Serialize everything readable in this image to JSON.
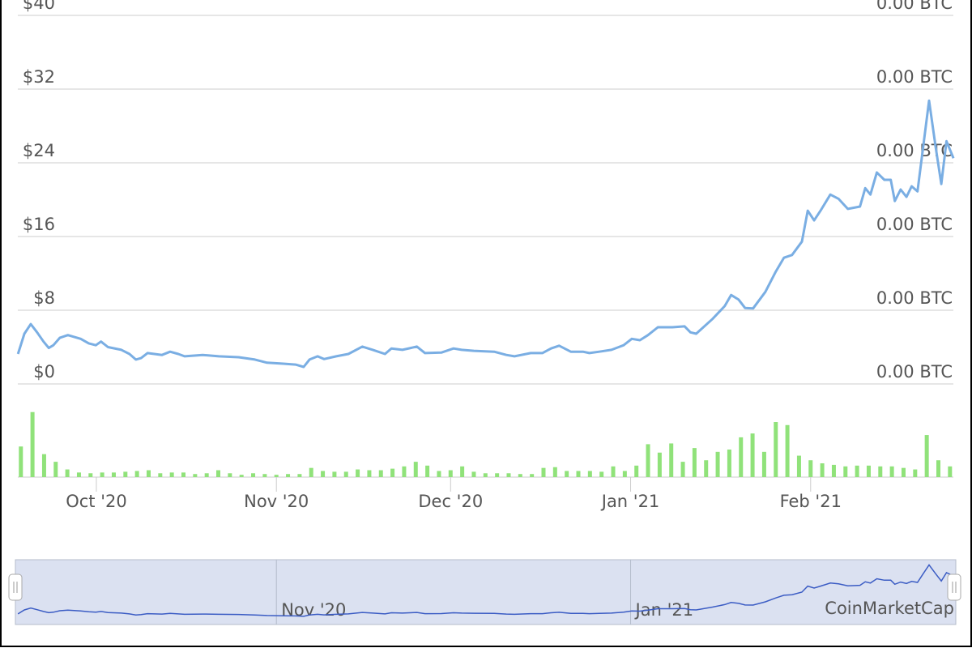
{
  "chart_data": {
    "type": "line",
    "xlim": [
      0,
      162
    ],
    "xticks": [
      {
        "value": 14,
        "label": "Oct '20"
      },
      {
        "value": 45,
        "label": "Nov '20"
      },
      {
        "value": 75,
        "label": "Dec '20"
      },
      {
        "value": 106,
        "label": "Jan '21"
      },
      {
        "value": 137,
        "label": "Feb '21"
      }
    ],
    "ylim": [
      0,
      40
    ],
    "yticks": [
      {
        "value": 0,
        "label": "$0"
      },
      {
        "value": 8,
        "label": "$8"
      },
      {
        "value": 16,
        "label": "$16"
      },
      {
        "value": 24,
        "label": "$24"
      },
      {
        "value": 32,
        "label": "$32"
      },
      {
        "value": 40,
        "label": "$40"
      }
    ],
    "y2lim": [
      0,
      0.0008
    ],
    "y2ticks": [
      {
        "value": 0,
        "label": "0.00 BTC"
      },
      {
        "value": 0.00016,
        "label": "0.00 BTC"
      },
      {
        "value": 0.00032,
        "label": "0.00 BTC"
      },
      {
        "value": 0.00048,
        "label": "0.00 BTC"
      },
      {
        "value": 0.00064,
        "label": "0.00 BTC"
      },
      {
        "value": 0.0008,
        "label": "0.00 BTC"
      }
    ],
    "grid": true,
    "series": [
      {
        "color": "#7aaee3",
        "x": [
          0.5,
          1.6,
          2.7,
          3.8,
          4.9,
          5.8,
          6.6,
          7.7,
          9.1,
          11.3,
          12.7,
          13.9,
          14.8,
          16.0,
          18.3,
          19.7,
          20.8,
          21.7,
          22.8,
          25.3,
          26.7,
          28.1,
          29.2,
          32.3,
          35.1,
          38.5,
          41.3,
          43.4,
          46.2,
          48.3,
          49.7,
          50.7,
          52.1,
          53.2,
          55.3,
          57.4,
          59.8,
          61.6,
          63.7,
          64.8,
          66.7,
          69.2,
          70.6,
          73.4,
          75.5,
          76.9,
          79.0,
          82.5,
          84.6,
          86.0,
          88.8,
          90.8,
          92.3,
          93.7,
          95.7,
          97.8,
          98.9,
          100.6,
          102.7,
          104.8,
          106.2,
          107.6,
          109.0,
          110.7,
          113.2,
          115.3,
          116.3,
          117.3,
          120.1,
          122.2,
          123.3,
          124.6,
          125.7,
          127.1,
          129.2,
          131.0,
          132.4,
          133.8,
          135.5,
          136.5,
          137.6,
          138.7,
          140.4,
          141.8,
          143.4,
          145.5,
          146.4,
          147.3,
          148.4,
          149.7,
          150.8,
          151.5,
          152.5,
          153.5,
          154.4,
          155.4,
          156.4,
          157.4,
          158.5,
          159.5,
          160.4,
          161.6
        ],
        "values": [
          3.25,
          5.45,
          6.5,
          5.6,
          4.6,
          3.9,
          4.2,
          5.0,
          5.3,
          4.9,
          4.4,
          4.2,
          4.6,
          4.0,
          3.7,
          3.25,
          2.65,
          2.8,
          3.35,
          3.15,
          3.5,
          3.25,
          3.0,
          3.15,
          3.0,
          2.9,
          2.65,
          2.3,
          2.2,
          2.1,
          1.85,
          2.65,
          3.0,
          2.7,
          3.0,
          3.25,
          4.05,
          3.7,
          3.25,
          3.85,
          3.7,
          4.05,
          3.35,
          3.4,
          3.85,
          3.7,
          3.6,
          3.5,
          3.15,
          3.0,
          3.35,
          3.35,
          3.85,
          4.15,
          3.5,
          3.5,
          3.35,
          3.5,
          3.7,
          4.2,
          4.9,
          4.75,
          5.3,
          6.15,
          6.15,
          6.25,
          5.6,
          5.45,
          7.05,
          8.45,
          9.65,
          9.15,
          8.25,
          8.2,
          10.0,
          12.2,
          13.7,
          14.0,
          15.45,
          18.8,
          17.75,
          18.8,
          20.55,
          20.1,
          19.0,
          19.25,
          21.25,
          20.55,
          22.95,
          22.15,
          22.15,
          19.85,
          21.1,
          20.3,
          21.45,
          20.9,
          25.85,
          30.75,
          25.85,
          21.7,
          26.35,
          24.5
        ]
      }
    ],
    "volume": {
      "color": "#90e27a",
      "ylim": [
        0,
        90
      ],
      "x": [
        1,
        3,
        5,
        7,
        9,
        11,
        13,
        15,
        17,
        19,
        21,
        23,
        25,
        27,
        29,
        31,
        33,
        35,
        37,
        39,
        41,
        43,
        45,
        47,
        49,
        51,
        53,
        55,
        57,
        59,
        61,
        63,
        65,
        67,
        69,
        71,
        73,
        75,
        77,
        79,
        81,
        83,
        85,
        87,
        89,
        91,
        93,
        95,
        97,
        99,
        101,
        103,
        105,
        107,
        109,
        111,
        113,
        115,
        117,
        119,
        121,
        123,
        125,
        127,
        129,
        131,
        133,
        135,
        137,
        139,
        141,
        143,
        145,
        147,
        149,
        151,
        153,
        155,
        157,
        159,
        161
      ],
      "values": [
        40,
        85,
        30,
        20,
        10,
        6,
        5,
        6,
        6,
        7,
        8,
        9,
        5,
        6,
        6,
        4,
        5,
        9,
        5,
        3,
        5,
        4,
        3,
        4,
        4,
        12,
        8,
        7,
        7,
        10,
        9,
        9,
        11,
        14,
        20,
        15,
        8,
        9,
        14,
        7,
        5,
        5,
        5,
        4,
        4,
        12,
        13,
        8,
        8,
        8,
        7,
        14,
        8,
        15,
        43,
        32,
        44,
        20,
        38,
        22,
        33,
        36,
        52,
        57,
        33,
        72,
        68,
        28,
        22,
        18,
        16,
        14,
        15,
        15,
        14,
        14,
        12,
        10,
        55,
        22,
        14
      ]
    },
    "navigator": {
      "color": "#3b5cc4",
      "xticks": [
        {
          "value": 45,
          "label": "Nov '20"
        },
        {
          "value": 106,
          "label": "Jan '21"
        }
      ],
      "watermark": "CoinMarketCap"
    }
  }
}
